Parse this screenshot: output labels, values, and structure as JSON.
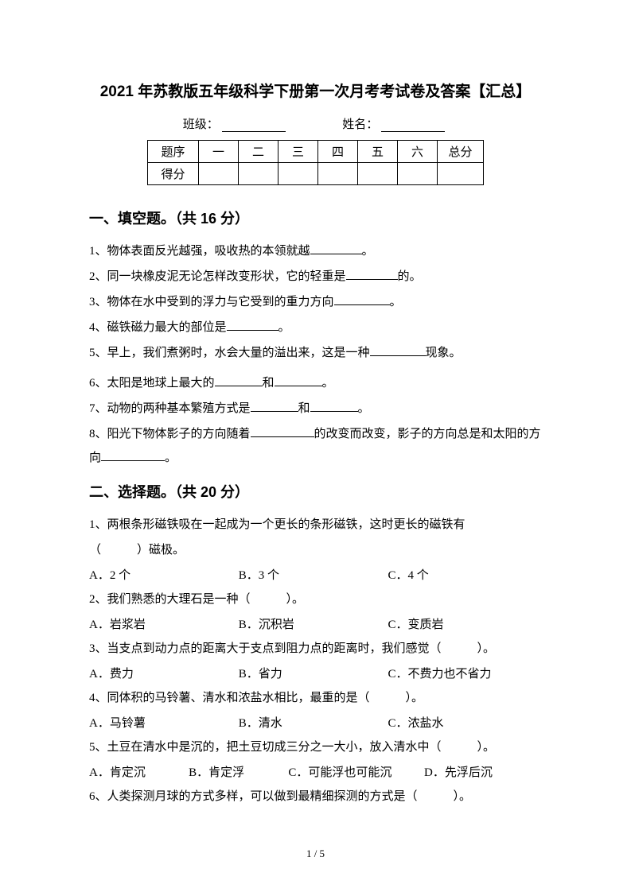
{
  "title": "2021 年苏教版五年级科学下册第一次月考考试卷及答案【汇总】",
  "info": {
    "class_label": "班级：",
    "name_label": "姓名："
  },
  "score_table": {
    "row1": [
      "题序",
      "一",
      "二",
      "三",
      "四",
      "五",
      "六",
      "总分"
    ],
    "row2_label": "得分"
  },
  "section1": {
    "heading": "一、填空题。（共 16 分）",
    "q1_a": "1、物体表面反光越强，吸收热的本领就越",
    "q1_b": "。",
    "q2_a": "2、同一块橡皮泥无论怎样改变形状，它的轻重是",
    "q2_b": "的。",
    "q3_a": "3、物体在水中受到的浮力与它受到的重力方向",
    "q3_b": "。",
    "q4_a": "4、磁铁磁力最大的部位是",
    "q4_b": "。",
    "q5_a": "5、早上，我们煮粥时，水会大量的溢出来，这是一种",
    "q5_b": "现象。",
    "q6_a": "6、太阳是地球上最大的",
    "q6_b": "和",
    "q6_c": "。",
    "q7_a": "7、动物的两种基本繁殖方式是",
    "q7_b": "和",
    "q7_c": "。",
    "q8_a": "8、阳光下物体影子的方向随着",
    "q8_b": "的改变而改变，影子的方向总是和太阳的方向",
    "q8_c": "。"
  },
  "section2": {
    "heading": "二、选择题。（共 20 分）",
    "q1_a": "1、两根条形磁铁吸在一起成为一个更长的条形磁铁，这时更长的磁铁有",
    "q1_b": "（　　　）磁极。",
    "q1_opts": {
      "A": "A．2 个",
      "B": "B．3 个",
      "C": "C．4 个"
    },
    "q2": "2、我们熟悉的大理石是一种（　　　）。",
    "q2_opts": {
      "A": "A．岩浆岩",
      "B": "B．沉积岩",
      "C": "C．变质岩"
    },
    "q3": "3、当支点到动力点的距离大于支点到阻力点的距离时，我们感觉（　　　）。",
    "q3_opts": {
      "A": "A．费力",
      "B": "B．省力",
      "C": "C．不费力也不省力"
    },
    "q4": "4、同体积的马铃薯、清水和浓盐水相比，最重的是（　　　）。",
    "q4_opts": {
      "A": "A．马铃薯",
      "B": "B．清水",
      "C": "C．浓盐水"
    },
    "q5": "5、土豆在清水中是沉的，把土豆切成三分之一大小，放入清水中（　　　）。",
    "q5_opts": {
      "A": "A．肯定沉",
      "B": "B．肯定浮",
      "C": "C．可能浮也可能沉",
      "D": "D．先浮后沉"
    },
    "q6": "6、人类探测月球的方式多样，可以做到最精细探测的方式是（　　　）。"
  },
  "page_num": "1 / 5",
  "colors": {
    "text": "#000000",
    "bg": "#ffffff",
    "border": "#000000"
  }
}
